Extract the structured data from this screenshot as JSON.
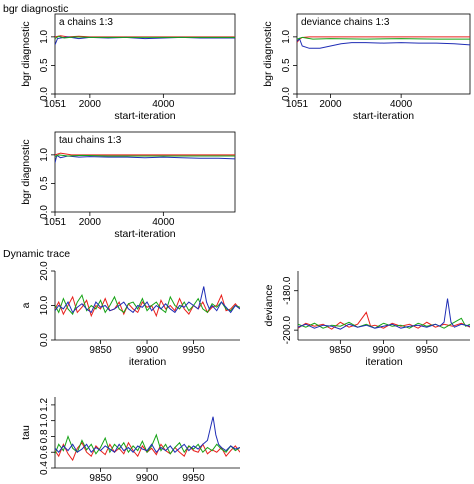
{
  "sections": {
    "bgr_title": "bgr diagnostic",
    "trace_title": "Dynamic trace"
  },
  "chart_data": [
    {
      "id": "bgr-a",
      "type": "line",
      "title": "a chains 1:3",
      "xlabel": "start-iteration",
      "ylabel": "bgr diagnostic",
      "xlim": [
        1051,
        5950
      ],
      "ylim": [
        0.0,
        1.4
      ],
      "xticks": [
        1051,
        2000,
        4000
      ],
      "yticks": [
        0.0,
        0.5,
        1.0
      ],
      "series": [
        {
          "color": "#e8201c",
          "x": [
            1051,
            1200,
            1400,
            1700,
            2000,
            2500,
            3000,
            3500,
            4000,
            4500,
            5000,
            5500,
            5950
          ],
          "values": [
            1.0,
            1.02,
            1.0,
            1.01,
            1.0,
            1.0,
            1.0,
            1.0,
            1.0,
            1.0,
            1.0,
            1.0,
            1.0
          ]
        },
        {
          "color": "#1f2db5",
          "x": [
            1051,
            1120,
            1200,
            1400,
            1700,
            2000,
            2500,
            3000,
            3500,
            4000,
            4500,
            5000,
            5500,
            5950
          ],
          "values": [
            0.86,
            0.97,
            0.98,
            1.0,
            0.97,
            0.99,
            0.98,
            0.99,
            0.97,
            0.98,
            0.99,
            0.98,
            0.98,
            0.98
          ]
        },
        {
          "color": "#15a315",
          "x": [
            1051,
            1150,
            1300,
            1600,
            2000,
            3000,
            4000,
            5000,
            5950
          ],
          "values": [
            0.97,
            1.01,
            0.98,
            1.0,
            0.99,
            0.99,
            0.99,
            0.99,
            0.99
          ]
        }
      ]
    },
    {
      "id": "bgr-deviance",
      "type": "line",
      "title": "deviance chains 1:3",
      "xlabel": "start-iteration",
      "ylabel": "bgr diagnostic",
      "xlim": [
        1051,
        5950
      ],
      "ylim": [
        0.0,
        1.4
      ],
      "xticks": [
        1051,
        2000,
        4000
      ],
      "yticks": [
        0.0,
        0.5,
        1.0
      ],
      "series": [
        {
          "color": "#e8201c",
          "x": [
            1051,
            1120,
            1200,
            1400,
            1700,
            2000,
            2500,
            3000,
            3500,
            4000,
            4500,
            5000,
            5500,
            5950
          ],
          "values": [
            0.9,
            0.96,
            0.99,
            1.0,
            1.0,
            1.0,
            1.0,
            1.0,
            1.0,
            1.0,
            1.0,
            1.0,
            1.0,
            1.0
          ]
        },
        {
          "color": "#1f2db5",
          "x": [
            1051,
            1120,
            1200,
            1400,
            1700,
            2000,
            2300,
            2600,
            3000,
            3500,
            4000,
            4500,
            5000,
            5500,
            5950
          ],
          "values": [
            0.92,
            0.97,
            0.84,
            0.8,
            0.8,
            0.84,
            0.88,
            0.9,
            0.9,
            0.89,
            0.9,
            0.89,
            0.89,
            0.88,
            0.86
          ]
        },
        {
          "color": "#15a315",
          "x": [
            1051,
            1200,
            1500,
            2000,
            3000,
            4000,
            5000,
            5950
          ],
          "values": [
            0.96,
            0.99,
            0.96,
            0.97,
            0.96,
            0.97,
            0.96,
            0.96
          ]
        }
      ]
    },
    {
      "id": "bgr-tau",
      "type": "line",
      "title": "tau chains 1:3",
      "xlabel": "start-iteration",
      "ylabel": "bgr diagnostic",
      "xlim": [
        1051,
        5950
      ],
      "ylim": [
        0.0,
        1.4
      ],
      "xticks": [
        1051,
        2000,
        4000
      ],
      "yticks": [
        0.0,
        0.5,
        1.0
      ],
      "series": [
        {
          "color": "#e8201c",
          "x": [
            1051,
            1200,
            1500,
            2000,
            3000,
            4000,
            5000,
            5950
          ],
          "values": [
            1.0,
            1.03,
            1.0,
            1.0,
            1.0,
            1.0,
            1.0,
            1.0
          ]
        },
        {
          "color": "#1f2db5",
          "x": [
            1051,
            1100,
            1200,
            1400,
            1700,
            2000,
            2500,
            3000,
            3500,
            4000,
            4500,
            5000,
            5500,
            5950
          ],
          "values": [
            0.86,
            0.99,
            0.95,
            0.98,
            0.96,
            0.97,
            0.96,
            0.96,
            0.95,
            0.96,
            0.95,
            0.94,
            0.94,
            0.93
          ]
        },
        {
          "color": "#15a315",
          "x": [
            1051,
            1150,
            1400,
            1800,
            2500,
            3500,
            4500,
            5950
          ],
          "values": [
            0.97,
            1.0,
            0.98,
            0.99,
            0.98,
            0.98,
            0.98,
            0.98
          ]
        }
      ]
    },
    {
      "id": "trace-a",
      "type": "line",
      "xlabel": "iteration",
      "ylabel": "a",
      "xlim": [
        9801,
        10000
      ],
      "ylim": [
        0.0,
        20.0
      ],
      "xticks": [
        9850,
        9900,
        9950
      ],
      "yticks": [
        0.0,
        10.0,
        20.0
      ],
      "tick_labels_y": [
        "0.0",
        "10.0",
        "20.0"
      ],
      "series": [
        {
          "color": "#e8201c",
          "x": [
            9801,
            9805,
            9810,
            9815,
            9820,
            9825,
            9830,
            9835,
            9840,
            9845,
            9850,
            9855,
            9860,
            9865,
            9870,
            9875,
            9880,
            9885,
            9890,
            9895,
            9900,
            9905,
            9910,
            9915,
            9920,
            9925,
            9930,
            9935,
            9940,
            9945,
            9950,
            9955,
            9960,
            9965,
            9970,
            9975,
            9980,
            9985,
            9990,
            9995,
            10000
          ],
          "values": [
            9.0,
            11.0,
            7.5,
            10.0,
            12.5,
            8.0,
            9.5,
            11.5,
            7.0,
            10.0,
            9.0,
            12.0,
            8.5,
            9.0,
            11.0,
            7.5,
            10.5,
            9.0,
            8.0,
            11.0,
            9.5,
            10.0,
            7.0,
            11.5,
            9.0,
            10.0,
            8.5,
            12.0,
            9.0,
            7.5,
            10.0,
            9.0,
            11.0,
            8.0,
            9.5,
            10.0,
            13.0,
            8.5,
            9.0,
            10.5,
            9.0
          ]
        },
        {
          "color": "#15a315",
          "x": [
            9801,
            9805,
            9810,
            9815,
            9820,
            9825,
            9830,
            9835,
            9840,
            9845,
            9850,
            9855,
            9860,
            9865,
            9870,
            9875,
            9880,
            9885,
            9890,
            9895,
            9900,
            9905,
            9910,
            9915,
            9920,
            9925,
            9930,
            9935,
            9940,
            9945,
            9950,
            9955,
            9960,
            9965,
            9970,
            9975,
            9980,
            9985,
            9990,
            9995,
            10000
          ],
          "values": [
            10.0,
            8.0,
            12.0,
            9.0,
            7.5,
            11.0,
            13.0,
            8.5,
            10.0,
            9.0,
            11.5,
            8.0,
            10.0,
            12.5,
            9.0,
            8.0,
            10.5,
            11.0,
            9.0,
            12.0,
            8.5,
            10.0,
            11.0,
            9.0,
            8.0,
            12.5,
            10.0,
            9.0,
            11.0,
            8.5,
            10.0,
            12.0,
            9.0,
            8.0,
            10.5,
            9.5,
            11.0,
            9.0,
            8.5,
            10.0,
            9.5
          ]
        },
        {
          "color": "#1f2db5",
          "x": [
            9801,
            9805,
            9810,
            9815,
            9820,
            9825,
            9830,
            9835,
            9840,
            9845,
            9850,
            9855,
            9860,
            9865,
            9870,
            9875,
            9880,
            9885,
            9890,
            9895,
            9900,
            9905,
            9910,
            9915,
            9920,
            9925,
            9930,
            9935,
            9940,
            9945,
            9950,
            9955,
            9958,
            9961,
            9964,
            9967,
            9970,
            9975,
            9980,
            9985,
            9990,
            9995,
            10000
          ],
          "values": [
            8.5,
            10.0,
            9.0,
            11.0,
            8.0,
            9.5,
            10.5,
            9.0,
            8.0,
            11.0,
            9.5,
            10.0,
            8.5,
            9.0,
            10.0,
            11.0,
            9.0,
            8.0,
            10.0,
            9.5,
            11.0,
            8.5,
            10.0,
            9.0,
            10.5,
            9.0,
            8.0,
            10.0,
            9.5,
            11.0,
            10.0,
            9.0,
            12.0,
            15.5,
            11.0,
            9.0,
            10.0,
            8.5,
            11.0,
            9.5,
            8.0,
            10.0,
            9.0
          ]
        }
      ]
    },
    {
      "id": "trace-deviance",
      "type": "line",
      "xlabel": "iteration",
      "ylabel": "deviance",
      "xlim": [
        9801,
        10000
      ],
      "ylim": [
        -205.0,
        -170.0
      ],
      "xticks": [
        9850,
        9900,
        9950
      ],
      "yticks": [
        -200.0,
        -180.0
      ],
      "tick_labels_y": [
        "-200.0",
        "-180.0"
      ],
      "series": [
        {
          "color": "#e8201c",
          "x": [
            9801,
            9810,
            9820,
            9830,
            9840,
            9850,
            9860,
            9870,
            9880,
            9885,
            9890,
            9900,
            9910,
            9920,
            9930,
            9940,
            9950,
            9960,
            9970,
            9980,
            9990,
            10000
          ],
          "values": [
            -199.0,
            -196.5,
            -198.0,
            -197.0,
            -199.5,
            -196.0,
            -198.5,
            -197.0,
            -191.0,
            -198.0,
            -197.5,
            -199.0,
            -196.5,
            -198.0,
            -197.0,
            -199.0,
            -196.0,
            -198.5,
            -197.0,
            -198.0,
            -196.5,
            -198.5
          ]
        },
        {
          "color": "#15a315",
          "x": [
            9801,
            9810,
            9820,
            9830,
            9840,
            9850,
            9860,
            9870,
            9880,
            9890,
            9900,
            9910,
            9920,
            9930,
            9940,
            9950,
            9960,
            9970,
            9980,
            9990,
            9995,
            10000
          ],
          "values": [
            -197.0,
            -198.5,
            -196.5,
            -199.0,
            -197.5,
            -198.0,
            -196.0,
            -198.5,
            -197.0,
            -199.0,
            -196.5,
            -198.0,
            -197.5,
            -199.0,
            -196.5,
            -198.0,
            -197.0,
            -199.0,
            -196.5,
            -194.0,
            -198.0,
            -197.0
          ]
        },
        {
          "color": "#1f2db5",
          "x": [
            9801,
            9810,
            9820,
            9830,
            9840,
            9850,
            9860,
            9870,
            9880,
            9890,
            9900,
            9910,
            9920,
            9930,
            9940,
            9950,
            9960,
            9965,
            9970,
            9974,
            9978,
            9982,
            9990,
            10000
          ],
          "values": [
            -198.5,
            -197.0,
            -199.0,
            -197.5,
            -198.0,
            -199.5,
            -197.0,
            -198.5,
            -197.5,
            -199.0,
            -198.0,
            -197.0,
            -199.0,
            -198.0,
            -197.5,
            -198.5,
            -197.0,
            -198.0,
            -196.0,
            -184.0,
            -196.0,
            -198.5,
            -197.0,
            -198.0
          ]
        }
      ]
    },
    {
      "id": "trace-tau",
      "type": "line",
      "xlabel": "iteration",
      "ylabel": "tau",
      "xlim": [
        9801,
        10000
      ],
      "ylim": [
        0.4,
        1.3
      ],
      "xticks": [
        9850,
        9900,
        9950
      ],
      "yticks": [
        0.4,
        0.6,
        0.8,
        1.0,
        1.2
      ],
      "tick_labels_y": [
        "0.4",
        "0.6",
        "0.8",
        "1.0",
        "1.2"
      ],
      "series": [
        {
          "color": "#e8201c",
          "x": [
            9801,
            9805,
            9810,
            9815,
            9820,
            9825,
            9830,
            9835,
            9840,
            9845,
            9850,
            9855,
            9860,
            9865,
            9870,
            9875,
            9880,
            9885,
            9890,
            9895,
            9900,
            9905,
            9910,
            9915,
            9920,
            9925,
            9930,
            9935,
            9940,
            9945,
            9950,
            9955,
            9960,
            9965,
            9970,
            9975,
            9980,
            9985,
            9990,
            9995,
            10000
          ],
          "values": [
            0.62,
            0.55,
            0.7,
            0.58,
            0.5,
            0.65,
            0.72,
            0.6,
            0.55,
            0.68,
            0.62,
            0.57,
            0.7,
            0.6,
            0.65,
            0.58,
            0.72,
            0.62,
            0.55,
            0.68,
            0.6,
            0.65,
            0.57,
            0.7,
            0.62,
            0.58,
            0.66,
            0.6,
            0.55,
            0.68,
            0.62,
            0.6,
            0.7,
            0.58,
            0.63,
            0.6,
            0.66,
            0.55,
            0.62,
            0.68,
            0.6
          ]
        },
        {
          "color": "#15a315",
          "x": [
            9801,
            9805,
            9810,
            9815,
            9820,
            9825,
            9830,
            9835,
            9840,
            9845,
            9850,
            9855,
            9860,
            9865,
            9870,
            9875,
            9880,
            9885,
            9890,
            9895,
            9900,
            9905,
            9910,
            9915,
            9920,
            9925,
            9930,
            9935,
            9940,
            9945,
            9950,
            9955,
            9960,
            9965,
            9970,
            9975,
            9980,
            9985,
            9990,
            9995,
            10000
          ],
          "values": [
            0.58,
            0.7,
            0.62,
            0.8,
            0.65,
            0.6,
            0.75,
            0.63,
            0.7,
            0.58,
            0.66,
            0.78,
            0.6,
            0.7,
            0.64,
            0.72,
            0.6,
            0.68,
            0.62,
            0.74,
            0.6,
            0.68,
            0.82,
            0.62,
            0.7,
            0.58,
            0.66,
            0.72,
            0.6,
            0.68,
            0.64,
            0.7,
            0.6,
            0.66,
            0.62,
            0.7,
            0.64,
            0.6,
            0.68,
            0.62,
            0.66
          ]
        },
        {
          "color": "#1f2db5",
          "x": [
            9801,
            9805,
            9810,
            9815,
            9820,
            9825,
            9830,
            9835,
            9840,
            9845,
            9850,
            9855,
            9860,
            9865,
            9870,
            9875,
            9880,
            9885,
            9890,
            9895,
            9900,
            9905,
            9910,
            9915,
            9920,
            9925,
            9930,
            9935,
            9940,
            9945,
            9950,
            9955,
            9960,
            9965,
            9968,
            9971,
            9974,
            9977,
            9980,
            9985,
            9990,
            9995,
            10000
          ],
          "values": [
            0.65,
            0.6,
            0.68,
            0.62,
            0.7,
            0.6,
            0.64,
            0.7,
            0.6,
            0.66,
            0.62,
            0.68,
            0.64,
            0.6,
            0.7,
            0.62,
            0.66,
            0.6,
            0.68,
            0.64,
            0.62,
            0.7,
            0.6,
            0.66,
            0.62,
            0.68,
            0.6,
            0.65,
            0.7,
            0.62,
            0.68,
            0.64,
            0.7,
            0.75,
            0.9,
            1.05,
            0.82,
            0.7,
            0.66,
            0.62,
            0.68,
            0.64,
            0.66
          ]
        }
      ]
    }
  ]
}
